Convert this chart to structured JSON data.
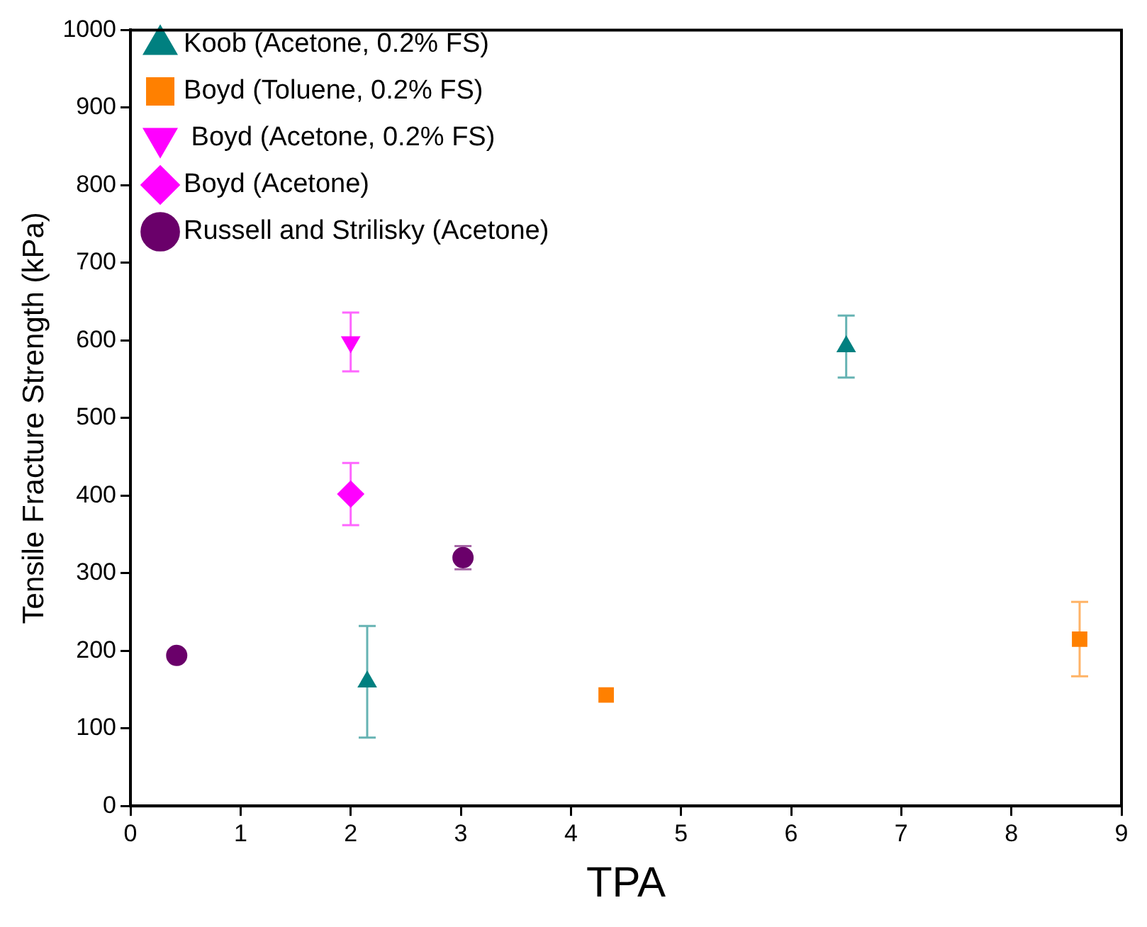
{
  "chart_data": {
    "type": "scatter",
    "xlabel": "TPA",
    "ylabel": "Tensile Fracture Strength (kPa)",
    "xlim": [
      0,
      9
    ],
    "xticks": [
      0,
      1,
      2,
      3,
      4,
      5,
      6,
      7,
      8,
      9
    ],
    "ylim": [
      0,
      1000
    ],
    "yticks": [
      0,
      100,
      200,
      300,
      400,
      500,
      600,
      700,
      800,
      900,
      1000
    ],
    "grid": false,
    "legend": "top left",
    "series": [
      {
        "name": "Koob (Acetone, 0.2% FS)",
        "color": "#008080",
        "marker": "triangle",
        "x": [
          2.15,
          6.5
        ],
        "values": [
          160,
          592
        ],
        "errors": [
          72,
          40
        ]
      },
      {
        "name": "Boyd (Toluene, 0.2% FS)",
        "color": "#ff8000",
        "marker": "square",
        "x": [
          4.32,
          8.62
        ],
        "values": [
          143,
          215
        ],
        "errors": [
          null,
          48
        ]
      },
      {
        "name": " Boyd (Acetone, 0.2% FS)",
        "color": "#ff00ff",
        "marker": "triangle-down",
        "x": [
          2.0
        ],
        "values": [
          598
        ],
        "errors": [
          38
        ]
      },
      {
        "name": "Boyd (Acetone)",
        "color": "#ff00ff",
        "marker": "diamond",
        "x": [
          2.0
        ],
        "values": [
          402
        ],
        "errors": [
          40
        ]
      },
      {
        "name": "Russell and Strilisky (Acetone)",
        "color": "#6a006a",
        "marker": "circle",
        "x": [
          0.42,
          3.02
        ],
        "values": [
          194,
          320
        ],
        "errors": [
          null,
          15
        ]
      }
    ]
  }
}
